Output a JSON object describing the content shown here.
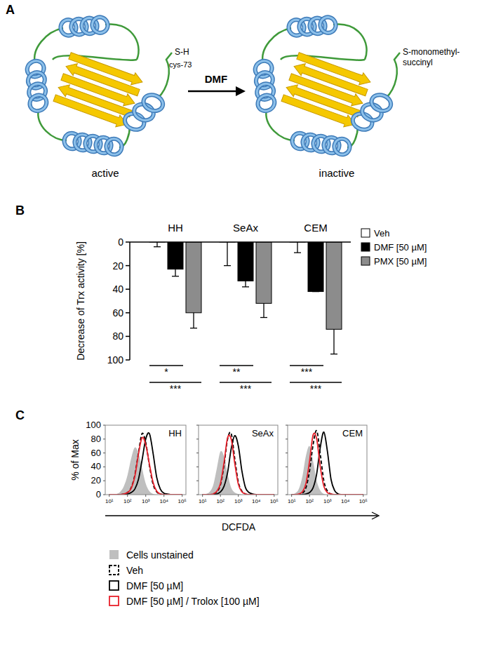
{
  "panel_labels": [
    "A",
    "B",
    "C"
  ],
  "diagram": {
    "arrow_label": "DMF",
    "left": {
      "state": "active",
      "residue": "S-H",
      "residue_name": "cys-73"
    },
    "right": {
      "state": "inactive",
      "modification": [
        "S-monomethyl-",
        "succinyl"
      ]
    }
  },
  "chart_data": [
    {
      "type": "bar",
      "y_label": "Decrease of Trx activity [%]",
      "categories": [
        "HH",
        "SeAx",
        "CEM"
      ],
      "series": [
        {
          "name": "Veh",
          "color": "#ffffff",
          "values": [
            0,
            0,
            0
          ],
          "errors": [
            4,
            20,
            9
          ]
        },
        {
          "name": "DMF [50 µM]",
          "color": "#000000",
          "values": [
            23,
            33,
            42
          ],
          "errors": [
            6,
            5,
            0
          ]
        },
        {
          "name": "PMX [50 µM]",
          "color": "#8c8c8c",
          "values": [
            60,
            52,
            74
          ],
          "errors": [
            13,
            12,
            21
          ]
        }
      ],
      "ylim": [
        100,
        0
      ],
      "yticks": [
        0,
        20,
        40,
        60,
        80,
        100
      ],
      "legend": "right",
      "annotations": [
        {
          "text": "*",
          "category": 0,
          "pair": [
            0,
            1
          ]
        },
        {
          "text": "***",
          "category": 0,
          "pair": [
            0,
            2
          ]
        },
        {
          "text": "**",
          "category": 1,
          "pair": [
            0,
            1
          ]
        },
        {
          "text": "***",
          "category": 1,
          "pair": [
            0,
            2
          ]
        },
        {
          "text": "***",
          "category": 2,
          "pair": [
            0,
            1
          ]
        },
        {
          "text": "***",
          "category": 2,
          "pair": [
            0,
            2
          ]
        }
      ]
    },
    {
      "type": "line",
      "title": "HH",
      "x_label": "DCFDA",
      "y_label": "% of Max",
      "log": "x",
      "legend": "bottom",
      "x": [
        10,
        15.85,
        25.12,
        39.81,
        63.1,
        100,
        158.5,
        251.2,
        398.1,
        631,
        1000,
        1585,
        2512,
        3981,
        6310,
        10000,
        15849,
        25119,
        39811,
        63096,
        100000
      ],
      "xlim": [
        6,
        160000
      ],
      "xticks": [
        {
          "value": 10,
          "label": "10¹"
        },
        {
          "value": 100,
          "label": "10²"
        },
        {
          "value": 1000,
          "label": "10³"
        },
        {
          "value": 10000,
          "label": "10⁴"
        },
        {
          "value": 100000,
          "label": "10⁵"
        }
      ],
      "ylim": [
        0,
        100
      ],
      "yticks": [
        0,
        20,
        40,
        60,
        80,
        100
      ],
      "series": [
        {
          "name": "Cells unstained",
          "type": "area",
          "color": "#bfbfbf",
          "values": [
            0,
            0,
            1,
            4,
            12,
            28,
            52,
            68,
            60,
            38,
            16,
            5,
            1,
            0,
            0,
            0,
            0,
            0,
            0,
            0,
            0
          ]
        },
        {
          "name": "Veh",
          "color": "#000000",
          "line_style": "dashed",
          "values": [
            0,
            0,
            0,
            0,
            1,
            3,
            10,
            28,
            60,
            88,
            75,
            42,
            15,
            4,
            1,
            0,
            0,
            0,
            0,
            0,
            0
          ]
        },
        {
          "name": "DMF [50 µM]",
          "color": "#000000",
          "line_style": "solid",
          "values": [
            0,
            0,
            0,
            0,
            0,
            1,
            3,
            8,
            22,
            50,
            80,
            88,
            60,
            25,
            8,
            2,
            1,
            0,
            0,
            0,
            0
          ]
        },
        {
          "name": "DMF [50 µM] / Trolox [100 µM]",
          "color": "#e8212b",
          "line_style": "solid",
          "values": [
            0,
            0,
            0,
            0,
            1,
            3,
            9,
            26,
            58,
            82,
            72,
            44,
            18,
            5,
            1,
            0,
            0,
            0,
            0,
            0,
            0
          ]
        }
      ]
    },
    {
      "type": "line",
      "title": "SeAx",
      "log": "x",
      "tick_labels": "x",
      "x": [
        10,
        15.85,
        25.12,
        39.81,
        63.1,
        100,
        158.5,
        251.2,
        398.1,
        631,
        1000,
        1585,
        2512,
        3981,
        6310,
        10000,
        15849,
        25119,
        39811,
        63096,
        100000
      ],
      "xlim": [
        6,
        160000
      ],
      "xticks": [
        {
          "value": 10,
          "label": "10¹"
        },
        {
          "value": 100,
          "label": "10²"
        },
        {
          "value": 1000,
          "label": "10³"
        },
        {
          "value": 10000,
          "label": "10⁴"
        },
        {
          "value": 100000,
          "label": "10⁵"
        }
      ],
      "ylim": [
        0,
        100
      ],
      "yticks": [
        0,
        20,
        40,
        60,
        80,
        100
      ],
      "series": [
        {
          "type": "area",
          "color": "#bfbfbf",
          "values": [
            0,
            1,
            4,
            14,
            38,
            62,
            55,
            30,
            10,
            3,
            1,
            0,
            0,
            0,
            0,
            0,
            0,
            0,
            0,
            0,
            0
          ]
        },
        {
          "color": "#000000",
          "line_style": "dashed",
          "values": [
            0,
            0,
            0,
            1,
            4,
            14,
            42,
            80,
            88,
            52,
            18,
            5,
            1,
            0,
            0,
            0,
            0,
            0,
            0,
            0,
            0
          ]
        },
        {
          "color": "#000000",
          "line_style": "solid",
          "values": [
            0,
            0,
            0,
            0,
            1,
            4,
            12,
            32,
            66,
            85,
            70,
            34,
            10,
            3,
            1,
            0,
            0,
            0,
            0,
            0,
            0
          ]
        },
        {
          "color": "#e8212b",
          "line_style": "solid",
          "values": [
            0,
            0,
            0,
            1,
            5,
            16,
            46,
            82,
            80,
            45,
            15,
            4,
            1,
            0,
            0,
            0,
            0,
            0,
            0,
            0,
            0
          ]
        }
      ]
    },
    {
      "type": "line",
      "title": "CEM",
      "log": "x",
      "tick_labels": "x",
      "x": [
        10,
        15.85,
        25.12,
        39.81,
        63.1,
        100,
        158.5,
        251.2,
        398.1,
        631,
        1000,
        1585,
        2512,
        3981,
        6310,
        10000,
        15849,
        25119,
        39811,
        63096,
        100000
      ],
      "xlim": [
        6,
        160000
      ],
      "xticks": [
        {
          "value": 10,
          "label": "10¹"
        },
        {
          "value": 100,
          "label": "10²"
        },
        {
          "value": 1000,
          "label": "10³"
        },
        {
          "value": 10000,
          "label": "10⁴"
        },
        {
          "value": 100000,
          "label": "10⁵"
        }
      ],
      "ylim": [
        0,
        100
      ],
      "yticks": [
        0,
        20,
        40,
        60,
        80,
        100
      ],
      "series": [
        {
          "type": "area",
          "color": "#bfbfbf",
          "values": [
            0,
            2,
            8,
            26,
            56,
            70,
            48,
            20,
            6,
            1,
            0,
            0,
            0,
            0,
            0,
            0,
            0,
            0,
            0,
            0,
            0
          ]
        },
        {
          "color": "#000000",
          "line_style": "dashed",
          "values": [
            0,
            0,
            0,
            2,
            10,
            34,
            72,
            92,
            58,
            20,
            5,
            1,
            0,
            0,
            0,
            0,
            0,
            0,
            0,
            0,
            0
          ]
        },
        {
          "color": "#000000",
          "line_style": "solid",
          "values": [
            0,
            0,
            0,
            0,
            1,
            3,
            10,
            30,
            68,
            90,
            62,
            22,
            6,
            1,
            0,
            0,
            0,
            0,
            0,
            0,
            0
          ]
        },
        {
          "color": "#e8212b",
          "line_style": "solid",
          "values": [
            0,
            0,
            1,
            4,
            16,
            48,
            86,
            80,
            40,
            12,
            3,
            1,
            0,
            0,
            0,
            0,
            0,
            0,
            0,
            0,
            0
          ]
        }
      ]
    }
  ]
}
